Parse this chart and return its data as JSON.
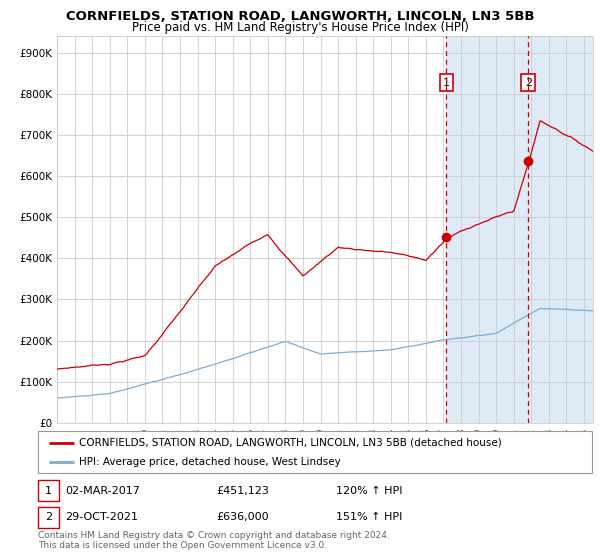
{
  "title": "CORNFIELDS, STATION ROAD, LANGWORTH, LINCOLN, LN3 5BB",
  "subtitle": "Price paid vs. HM Land Registry's House Price Index (HPI)",
  "ylabel_ticks": [
    "£0",
    "£100K",
    "£200K",
    "£300K",
    "£400K",
    "£500K",
    "£600K",
    "£700K",
    "£800K",
    "£900K"
  ],
  "ytick_values": [
    0,
    100000,
    200000,
    300000,
    400000,
    500000,
    600000,
    700000,
    800000,
    900000
  ],
  "ylim": [
    0,
    940000
  ],
  "xlim_start": 1995.0,
  "xlim_end": 2025.5,
  "red_line_color": "#cc0000",
  "blue_line_color": "#7aaed6",
  "background_color": "#ffffff",
  "plot_bg_color": "#ffffff",
  "shaded_region_color": "#deeaf5",
  "grid_color": "#cccccc",
  "point1_x": 2017.17,
  "point1_y": 451123,
  "point2_x": 2021.83,
  "point2_y": 636000,
  "vline1_x": 2017.17,
  "vline2_x": 2021.83,
  "label1_text": "1",
  "label2_text": "2",
  "legend_red_label": "CORNFIELDS, STATION ROAD, LANGWORTH, LINCOLN, LN3 5BB (detached house)",
  "legend_blue_label": "HPI: Average price, detached house, West Lindsey",
  "table_row1": [
    "1",
    "02-MAR-2017",
    "£451,123",
    "120% ↑ HPI"
  ],
  "table_row2": [
    "2",
    "29-OCT-2021",
    "£636,000",
    "151% ↑ HPI"
  ],
  "footer": "Contains HM Land Registry data © Crown copyright and database right 2024.\nThis data is licensed under the Open Government Licence v3.0.",
  "title_fontsize": 9.5,
  "subtitle_fontsize": 8.5,
  "tick_fontsize": 7.5,
  "legend_fontsize": 7.5,
  "table_fontsize": 8,
  "footer_fontsize": 6.5
}
